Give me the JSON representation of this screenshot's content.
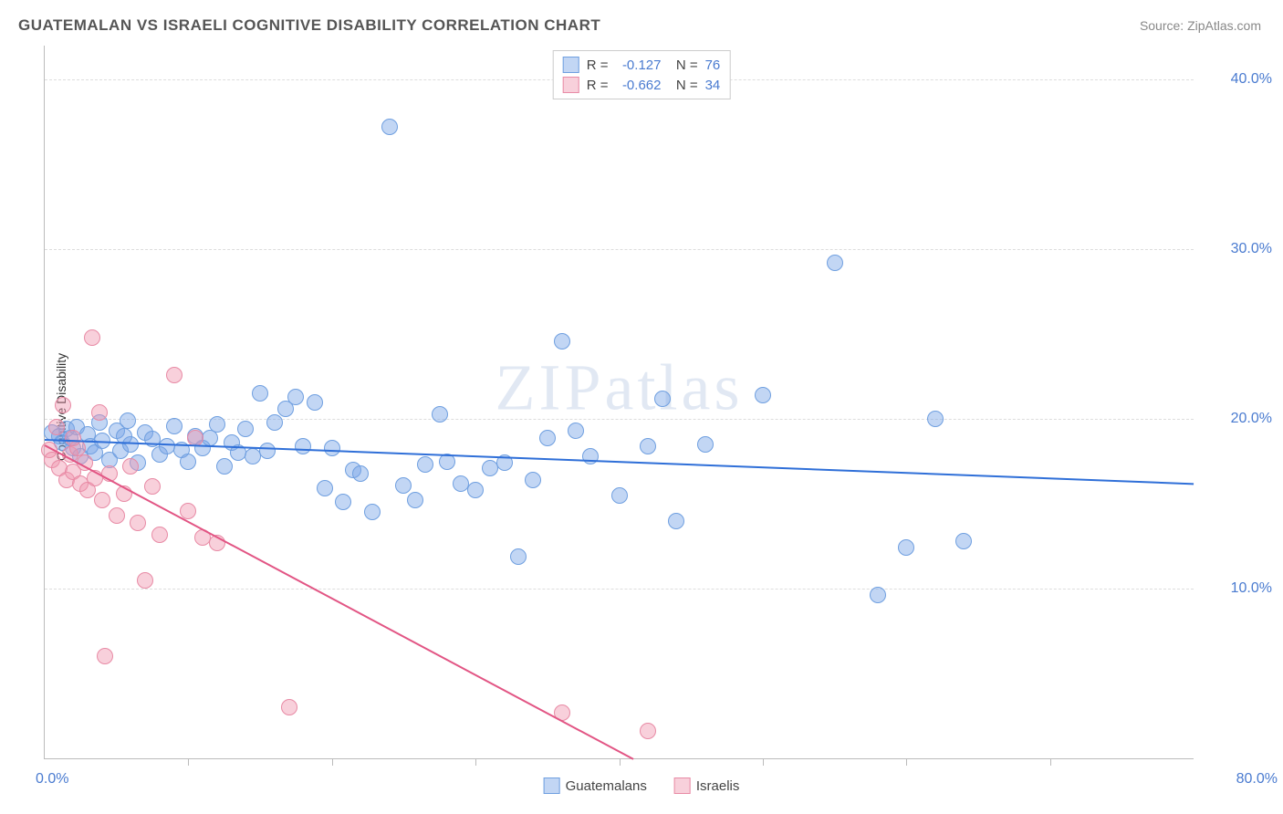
{
  "chart": {
    "type": "scatter",
    "title": "GUATEMALAN VS ISRAELI COGNITIVE DISABILITY CORRELATION CHART",
    "source": "Source: ZipAtlas.com",
    "watermark": "ZIPatlas",
    "y_axis_label": "Cognitive Disability",
    "x_min": 0.0,
    "x_max": 80.0,
    "y_min": 0.0,
    "y_max": 42.0,
    "x_label_min": "0.0%",
    "x_label_max": "80.0%",
    "x_tick_step": 10.0,
    "y_ticks": [
      {
        "value": 10.0,
        "label": "10.0%"
      },
      {
        "value": 20.0,
        "label": "20.0%"
      },
      {
        "value": 30.0,
        "label": "30.0%"
      },
      {
        "value": 40.0,
        "label": "40.0%"
      }
    ],
    "grid_color": "#dddddd",
    "axis_color": "#bbbbbb",
    "tick_label_color": "#4a7bd0",
    "background_color": "#ffffff",
    "series": [
      {
        "name": "Guatemalans",
        "marker_fill": "rgba(120,165,230,0.45)",
        "marker_stroke": "#6f9fe0",
        "marker_radius": 9,
        "trend_color": "#2f6fd8",
        "trend_width": 2,
        "stats": {
          "R": "-0.127",
          "N": "76"
        },
        "trend": {
          "x1": 0.0,
          "y1": 18.8,
          "x2": 80.0,
          "y2": 16.2
        },
        "points": [
          [
            0.5,
            19.2
          ],
          [
            1.0,
            19.0
          ],
          [
            1.2,
            18.6
          ],
          [
            1.5,
            19.4
          ],
          [
            1.8,
            18.9
          ],
          [
            2.0,
            18.3
          ],
          [
            2.2,
            19.5
          ],
          [
            2.5,
            17.8
          ],
          [
            3.0,
            19.1
          ],
          [
            3.2,
            18.4
          ],
          [
            3.5,
            18.0
          ],
          [
            3.8,
            19.8
          ],
          [
            4.0,
            18.7
          ],
          [
            4.5,
            17.6
          ],
          [
            5.0,
            19.3
          ],
          [
            5.3,
            18.1
          ],
          [
            5.8,
            19.9
          ],
          [
            6.0,
            18.5
          ],
          [
            6.5,
            17.4
          ],
          [
            7.0,
            19.2
          ],
          [
            7.5,
            18.8
          ],
          [
            8.0,
            17.9
          ],
          [
            8.5,
            18.4
          ],
          [
            9.0,
            19.6
          ],
          [
            9.5,
            18.2
          ],
          [
            10.0,
            17.5
          ],
          [
            10.5,
            19.0
          ],
          [
            11.0,
            18.3
          ],
          [
            11.5,
            18.9
          ],
          [
            12.0,
            19.7
          ],
          [
            12.5,
            17.2
          ],
          [
            13.0,
            18.6
          ],
          [
            13.5,
            18.0
          ],
          [
            14.0,
            19.4
          ],
          [
            14.5,
            17.8
          ],
          [
            15.0,
            21.5
          ],
          [
            15.5,
            18.1
          ],
          [
            16.0,
            19.8
          ],
          [
            16.8,
            20.6
          ],
          [
            17.5,
            21.3
          ],
          [
            18.0,
            18.4
          ],
          [
            18.8,
            21.0
          ],
          [
            19.5,
            15.9
          ],
          [
            20.0,
            18.3
          ],
          [
            20.8,
            15.1
          ],
          [
            21.5,
            17.0
          ],
          [
            22.0,
            16.8
          ],
          [
            22.8,
            14.5
          ],
          [
            24.0,
            37.2
          ],
          [
            25.0,
            16.1
          ],
          [
            25.8,
            15.2
          ],
          [
            26.5,
            17.3
          ],
          [
            27.5,
            20.3
          ],
          [
            28.0,
            17.5
          ],
          [
            29.0,
            16.2
          ],
          [
            30.0,
            15.8
          ],
          [
            31.0,
            17.1
          ],
          [
            32.0,
            17.4
          ],
          [
            33.0,
            11.9
          ],
          [
            34.0,
            16.4
          ],
          [
            35.0,
            18.9
          ],
          [
            36.0,
            24.6
          ],
          [
            37.0,
            19.3
          ],
          [
            38.0,
            17.8
          ],
          [
            40.0,
            15.5
          ],
          [
            42.0,
            18.4
          ],
          [
            43.0,
            21.2
          ],
          [
            44.0,
            14.0
          ],
          [
            46.0,
            18.5
          ],
          [
            50.0,
            21.4
          ],
          [
            55.0,
            29.2
          ],
          [
            58.0,
            9.6
          ],
          [
            60.0,
            12.4
          ],
          [
            62.0,
            20.0
          ],
          [
            64.0,
            12.8
          ],
          [
            5.5,
            19.0
          ]
        ]
      },
      {
        "name": "Israelis",
        "marker_fill": "rgba(240,150,175,0.45)",
        "marker_stroke": "#e88aa5",
        "marker_radius": 9,
        "trend_color": "#e25584",
        "trend_width": 2,
        "stats": {
          "R": "-0.662",
          "N": "34"
        },
        "trend": {
          "x1": 0.0,
          "y1": 18.5,
          "x2": 41.0,
          "y2": 0.0
        },
        "points": [
          [
            0.3,
            18.2
          ],
          [
            0.5,
            17.6
          ],
          [
            0.8,
            19.5
          ],
          [
            1.0,
            17.1
          ],
          [
            1.3,
            20.8
          ],
          [
            1.5,
            16.4
          ],
          [
            1.8,
            17.9
          ],
          [
            2.0,
            16.9
          ],
          [
            2.3,
            18.3
          ],
          [
            2.5,
            16.2
          ],
          [
            2.8,
            17.4
          ],
          [
            3.0,
            15.8
          ],
          [
            3.3,
            24.8
          ],
          [
            3.5,
            16.5
          ],
          [
            3.8,
            20.4
          ],
          [
            4.0,
            15.2
          ],
          [
            4.5,
            16.8
          ],
          [
            5.0,
            14.3
          ],
          [
            5.5,
            15.6
          ],
          [
            6.0,
            17.2
          ],
          [
            6.5,
            13.9
          ],
          [
            7.0,
            10.5
          ],
          [
            7.5,
            16.0
          ],
          [
            8.0,
            13.2
          ],
          [
            9.0,
            22.6
          ],
          [
            10.0,
            14.6
          ],
          [
            10.5,
            18.9
          ],
          [
            11.0,
            13.0
          ],
          [
            12.0,
            12.7
          ],
          [
            4.2,
            6.0
          ],
          [
            17.0,
            3.0
          ],
          [
            36.0,
            2.7
          ],
          [
            42.0,
            1.6
          ],
          [
            2.0,
            18.9
          ]
        ]
      }
    ],
    "bottom_legend": [
      {
        "label": "Guatemalans",
        "fill": "rgba(120,165,230,0.45)",
        "stroke": "#6f9fe0"
      },
      {
        "label": "Israelis",
        "fill": "rgba(240,150,175,0.45)",
        "stroke": "#e88aa5"
      }
    ],
    "stats_legend_swatches": [
      {
        "fill": "rgba(120,165,230,0.45)",
        "stroke": "#6f9fe0"
      },
      {
        "fill": "rgba(240,150,175,0.45)",
        "stroke": "#e88aa5"
      }
    ]
  }
}
